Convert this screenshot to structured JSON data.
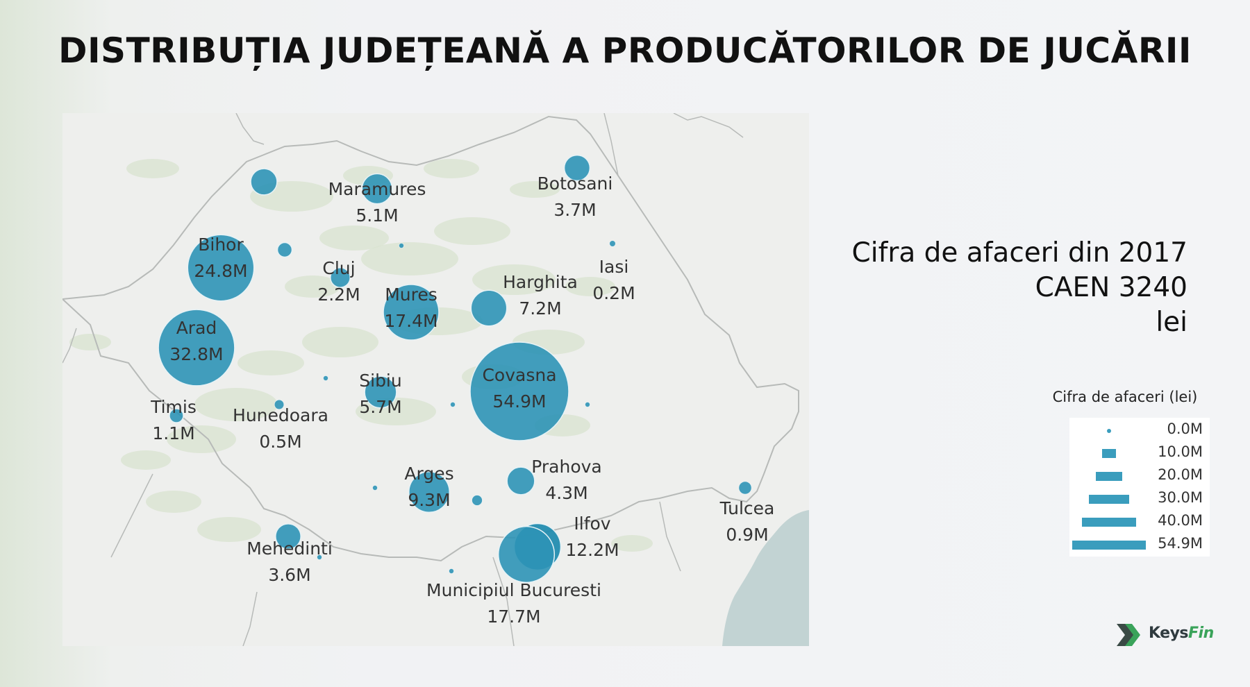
{
  "title": "DISTRIBUȚIA JUDEȚEANĂ A PRODUCĂTORILOR DE JUCĂRII",
  "subtitle": [
    "Cifra de afaceri din 2017",
    "CAEN 3240",
    "lei"
  ],
  "legend": {
    "title": "Cifra de afaceri (lei)",
    "items": [
      {
        "label": "0.0M",
        "value": 0.0
      },
      {
        "label": "10.0M",
        "value": 10.0
      },
      {
        "label": "20.0M",
        "value": 20.0
      },
      {
        "label": "30.0M",
        "value": 30.0
      },
      {
        "label": "40.0M",
        "value": 40.0
      },
      {
        "label": "54.9M",
        "value": 54.9
      }
    ]
  },
  "colors": {
    "bubble": "#2e94b6",
    "bubble_dark": "#1d8aae",
    "map_land": "#eeefed",
    "map_forest": "#d8e3cf",
    "sea": "#c2d3d3",
    "border": "#b7bab8"
  },
  "counties": [
    {
      "name": "Maramures",
      "label_value": "5.1M",
      "value": 5.1
    },
    {
      "name": "Botosani",
      "label_value": "3.7M",
      "value": 3.7
    },
    {
      "name": "Bihor",
      "label_value": "24.8M",
      "value": 24.8
    },
    {
      "name": "Cluj",
      "label_value": "2.2M",
      "value": 2.2
    },
    {
      "name": "Iasi",
      "label_value": "0.2M",
      "value": 0.2
    },
    {
      "name": "Harghita",
      "label_value": "7.2M",
      "value": 7.2
    },
    {
      "name": "Mures",
      "label_value": "17.4M",
      "value": 17.4
    },
    {
      "name": "Arad",
      "label_value": "32.8M",
      "value": 32.8
    },
    {
      "name": "Sibiu",
      "label_value": "5.7M",
      "value": 5.7
    },
    {
      "name": "Covasna",
      "label_value": "54.9M",
      "value": 54.9
    },
    {
      "name": "Timis",
      "label_value": "1.1M",
      "value": 1.1
    },
    {
      "name": "Hunedoara",
      "label_value": "0.5M",
      "value": 0.5
    },
    {
      "name": "Arges",
      "label_value": "9.3M",
      "value": 9.3
    },
    {
      "name": "Prahova",
      "label_value": "4.3M",
      "value": 4.3
    },
    {
      "name": "Ilfov",
      "label_value": "12.2M",
      "value": 12.2
    },
    {
      "name": "Tulcea",
      "label_value": "0.9M",
      "value": 0.9
    },
    {
      "name": "Mehedinti",
      "label_value": "3.6M",
      "value": 3.6
    },
    {
      "name": "Municipiul Bucuresti",
      "label_value": "17.7M",
      "value": 17.7
    }
  ],
  "unlabeled_bubbles": [
    {
      "value": 3.9
    },
    {
      "value": 0.1
    },
    {
      "value": 1.2
    },
    {
      "value": 0.1
    },
    {
      "value": 0.1
    },
    {
      "value": 0.1
    },
    {
      "value": 0.1
    },
    {
      "value": 0.6
    },
    {
      "value": 0.1
    },
    {
      "value": 0.1
    }
  ],
  "brand": {
    "part1": "Keys",
    "part2": "Fin"
  }
}
